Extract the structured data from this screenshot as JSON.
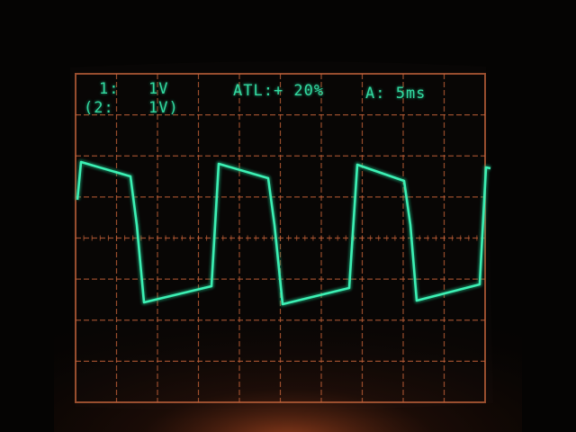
{
  "scope": {
    "channel_1": {
      "label": "1:",
      "value": "1V"
    },
    "channel_2": {
      "label": "(2:",
      "value": "1V)"
    },
    "trigger": "ATL:+ 20%",
    "timebase": "A: 5ms"
  },
  "colors": {
    "trace": "#3cf0b4",
    "graticule": "#c8643a",
    "screen": "#070605",
    "bezel": "#2a1a12"
  }
}
